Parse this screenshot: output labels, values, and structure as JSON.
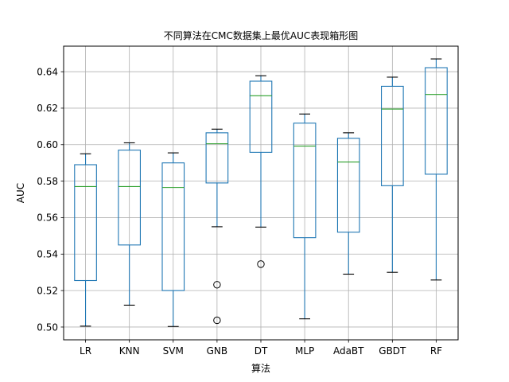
{
  "chart_data": {
    "type": "box",
    "title": "不同算法在CMC数据集上最优AUC表现箱形图",
    "xlabel": "算法",
    "ylabel": "AUC",
    "ylim": [
      0.493,
      0.654
    ],
    "y_ticks": [
      "0.50",
      "0.52",
      "0.54",
      "0.56",
      "0.58",
      "0.60",
      "0.62",
      "0.64"
    ],
    "y_tick_values": [
      0.5,
      0.52,
      0.54,
      0.56,
      0.58,
      0.6,
      0.62,
      0.64
    ],
    "grid": true,
    "categories": [
      "LR",
      "KNN",
      "SVM",
      "GNB",
      "DT",
      "MLP",
      "AdaBT",
      "GBDT",
      "RF"
    ],
    "boxes": [
      {
        "whisker_low": 0.5005,
        "q1": 0.5255,
        "median": 0.577,
        "q3": 0.589,
        "whisker_high": 0.595,
        "outliers": []
      },
      {
        "whisker_low": 0.512,
        "q1": 0.545,
        "median": 0.577,
        "q3": 0.597,
        "whisker_high": 0.601,
        "outliers": []
      },
      {
        "whisker_low": 0.5003,
        "q1": 0.52,
        "median": 0.5765,
        "q3": 0.59,
        "whisker_high": 0.5955,
        "outliers": []
      },
      {
        "whisker_low": 0.555,
        "q1": 0.579,
        "median": 0.6005,
        "q3": 0.6065,
        "whisker_high": 0.6085,
        "outliers": [
          0.5232,
          0.5037
        ]
      },
      {
        "whisker_low": 0.5548,
        "q1": 0.5958,
        "median": 0.6268,
        "q3": 0.6348,
        "whisker_high": 0.6378,
        "outliers": [
          0.5345
        ]
      },
      {
        "whisker_low": 0.5045,
        "q1": 0.549,
        "median": 0.5992,
        "q3": 0.6118,
        "whisker_high": 0.6168,
        "outliers": []
      },
      {
        "whisker_low": 0.529,
        "q1": 0.552,
        "median": 0.5905,
        "q3": 0.6035,
        "whisker_high": 0.6065,
        "outliers": []
      },
      {
        "whisker_low": 0.53,
        "q1": 0.5775,
        "median": 0.6195,
        "q3": 0.632,
        "whisker_high": 0.637,
        "outliers": []
      },
      {
        "whisker_low": 0.5258,
        "q1": 0.5838,
        "median": 0.6275,
        "q3": 0.6422,
        "whisker_high": 0.647,
        "outliers": []
      }
    ],
    "colors": {
      "box": "#1f77b4",
      "median": "#2ca02c",
      "whisker": "#000000",
      "grid": "#b0b0b0",
      "axes": "#000000"
    }
  }
}
